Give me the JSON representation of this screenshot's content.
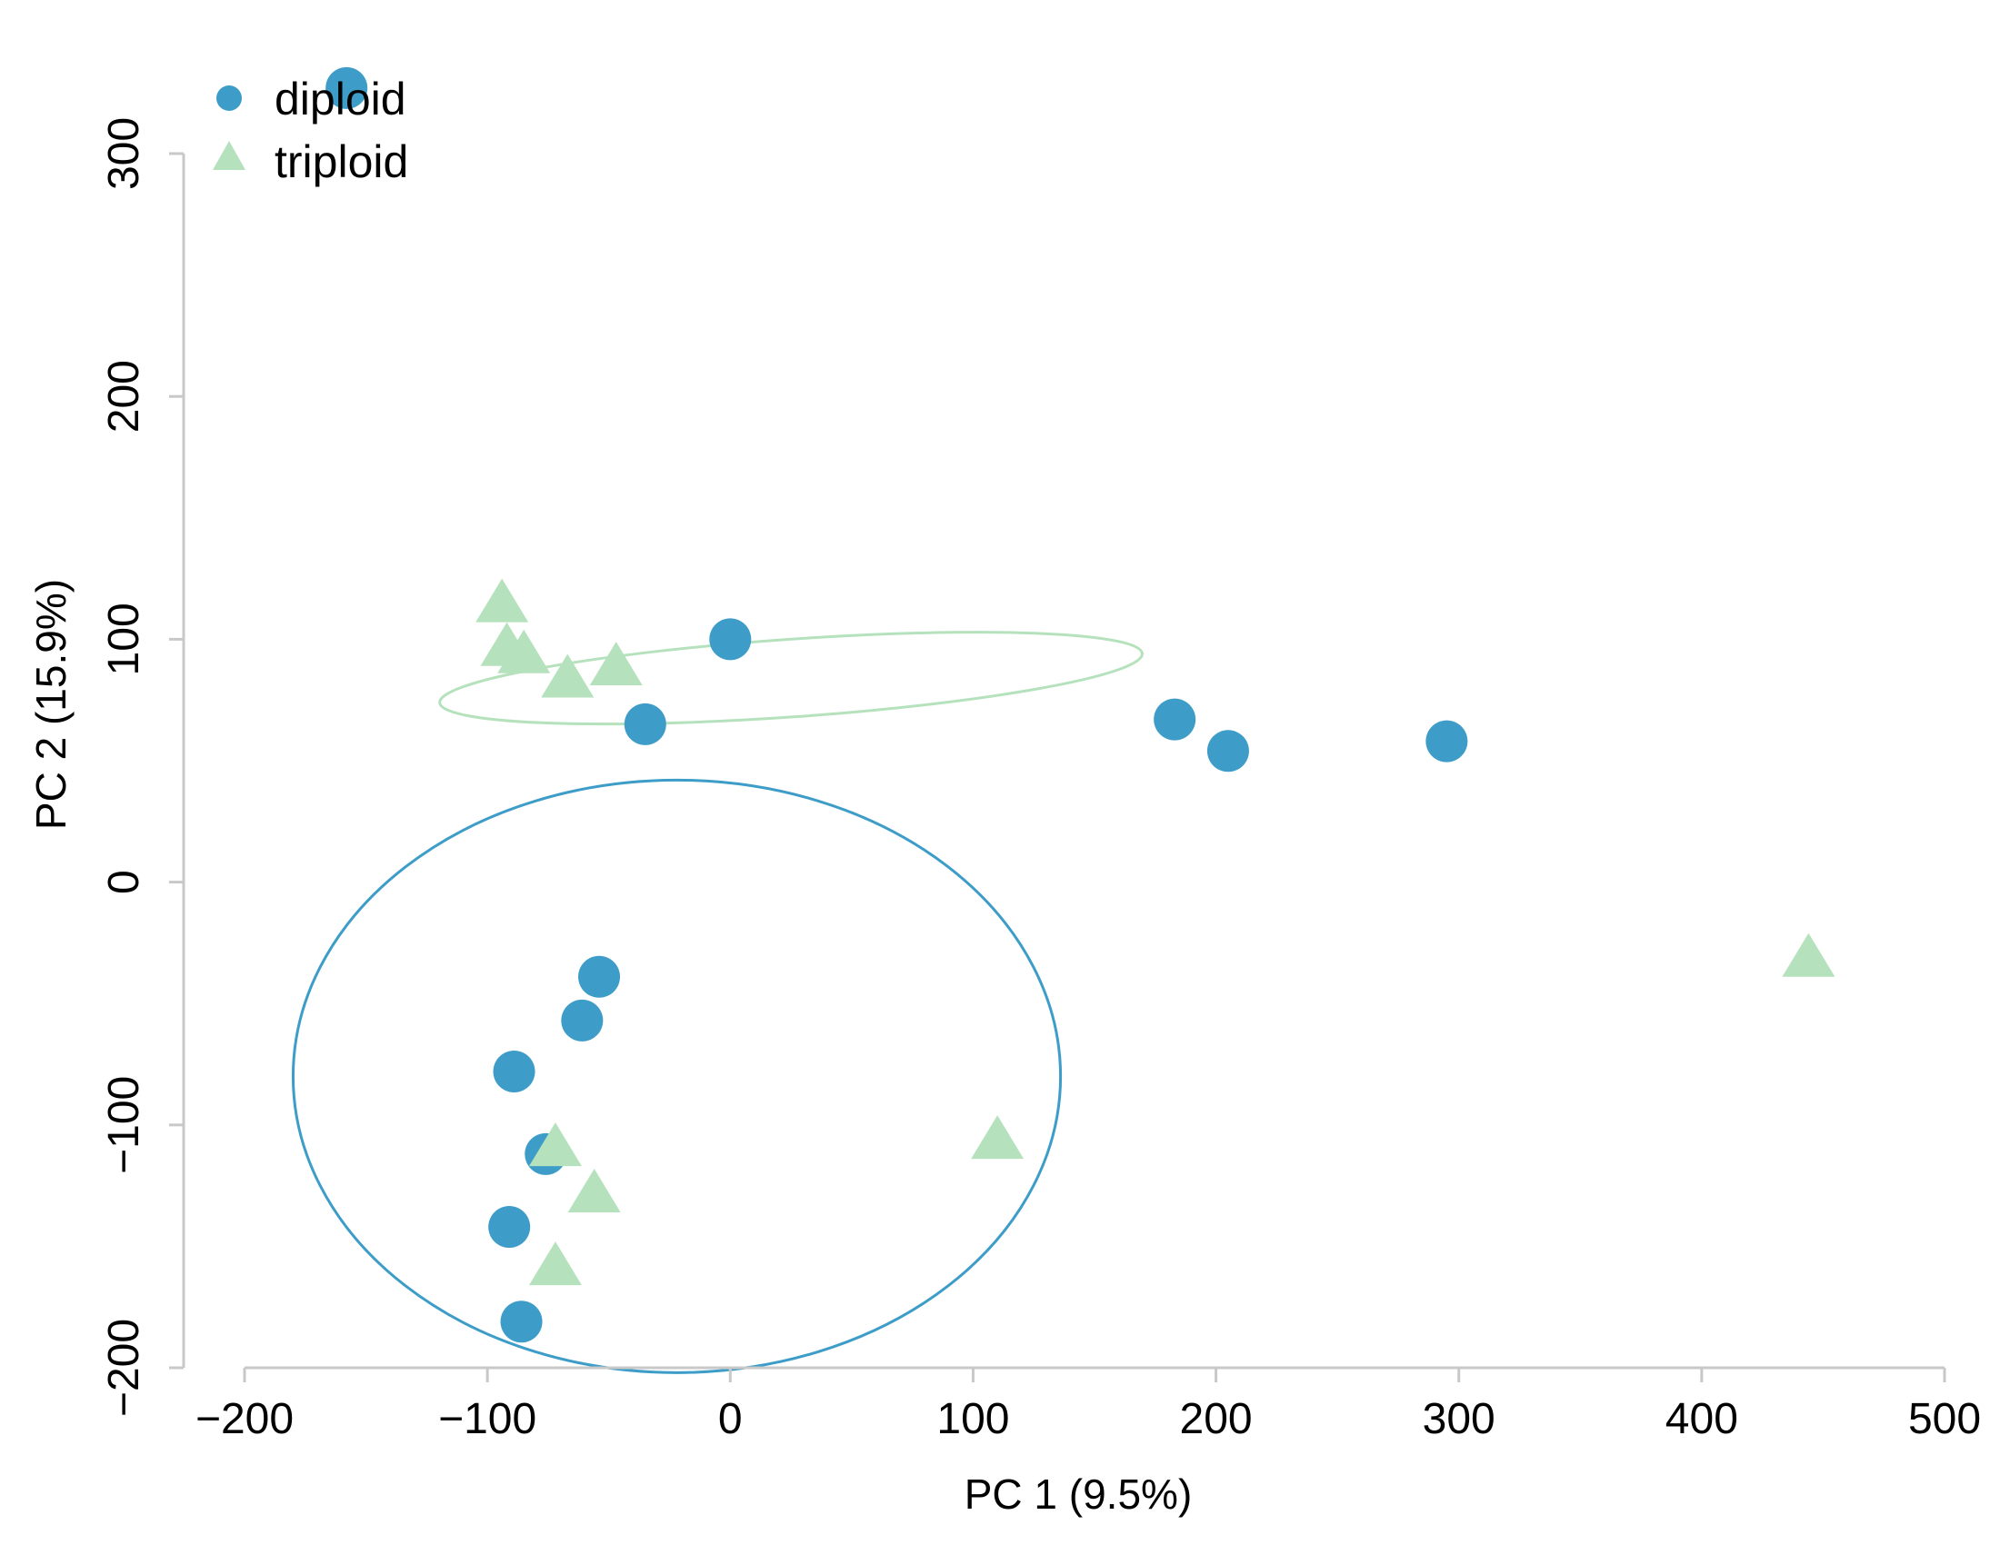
{
  "chart_data": {
    "type": "scatter",
    "title": "",
    "xlabel": "PC 1 (9.5%)",
    "ylabel": "PC 2 (15.9%)",
    "xlim": [
      -200,
      500
    ],
    "ylim": [
      -200,
      300
    ],
    "xticks": [
      -200,
      -100,
      0,
      100,
      200,
      300,
      400,
      500
    ],
    "yticks": [
      -200,
      -100,
      0,
      100,
      200,
      300
    ],
    "xtick_labels": [
      "−200",
      "−100",
      "0",
      "100",
      "200",
      "300",
      "400",
      "500"
    ],
    "ytick_labels": [
      "−200",
      "−100",
      "0",
      "100",
      "200",
      "300"
    ],
    "grid": false,
    "legend_position": "top-left",
    "series": [
      {
        "name": "diploid",
        "marker": "circle",
        "color": "#3d9dc8",
        "points": [
          {
            "x": -158,
            "y": 327
          },
          {
            "x": 0,
            "y": 100
          },
          {
            "x": -35,
            "y": 65
          },
          {
            "x": 183,
            "y": 67
          },
          {
            "x": 205,
            "y": 54
          },
          {
            "x": 295,
            "y": 58
          },
          {
            "x": -54,
            "y": -39
          },
          {
            "x": -61,
            "y": -57
          },
          {
            "x": -89,
            "y": -78
          },
          {
            "x": -76,
            "y": -112
          },
          {
            "x": -91,
            "y": -142
          },
          {
            "x": -86,
            "y": -181
          }
        ],
        "ellipse": {
          "cx": -22,
          "cy": -80,
          "rx": 158,
          "ry": 122,
          "angle_deg": 0
        }
      },
      {
        "name": "triploid",
        "marker": "triangle",
        "color": "#b5e2bd",
        "points": [
          {
            "x": -94,
            "y": 116
          },
          {
            "x": -92,
            "y": 98
          },
          {
            "x": -85,
            "y": 95
          },
          {
            "x": -67,
            "y": 85
          },
          {
            "x": -47,
            "y": 90
          },
          {
            "x": 444,
            "y": -30
          },
          {
            "x": 110,
            "y": -105
          },
          {
            "x": -72,
            "y": -108
          },
          {
            "x": -56,
            "y": -127
          },
          {
            "x": -72,
            "y": -157
          }
        ],
        "ellipse": {
          "cx": 25,
          "cy": 84,
          "rx": 145,
          "ry": 16,
          "angle_deg": -4
        }
      }
    ]
  }
}
